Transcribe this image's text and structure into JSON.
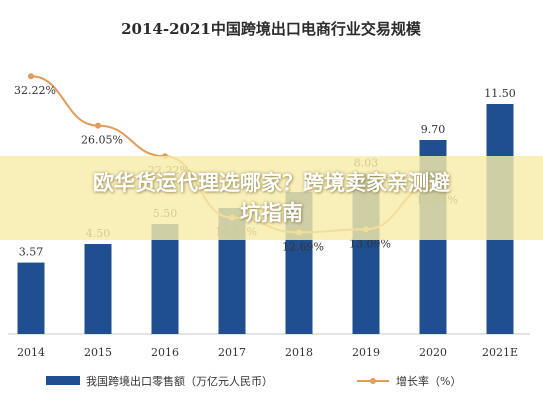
{
  "chart_data": {
    "type": "bar",
    "title": "2014-2021中国跨境出口电商行业交易规模",
    "categories": [
      "2014",
      "2015",
      "2016",
      "2017",
      "2018",
      "2019",
      "2020",
      "2021E"
    ],
    "series": [
      {
        "name": "我国跨境出口零售额（万亿元人民币）",
        "type": "bar",
        "color": "#1f4f8f",
        "values": [
          3.57,
          4.5,
          5.5,
          6.3,
          7.1,
          8.03,
          9.7,
          11.5
        ],
        "labels": [
          "3.57",
          "4.50",
          "5.50",
          "",
          "",
          "8.03",
          "9.70",
          "11.50"
        ]
      },
      {
        "name": "增长率（%）",
        "type": "line",
        "color": "#e39b57",
        "values": [
          32.22,
          26.05,
          22.22,
          14.54,
          12.69,
          13.09,
          18.55,
          null
        ],
        "labels": [
          "32.22%",
          "26.05%",
          "22.22%",
          "14.54%",
          "12.69%",
          "13.09%",
          "18.55%",
          ""
        ]
      }
    ],
    "grid": false,
    "legend_position": "bottom"
  },
  "overlay": {
    "headline": "欧华货运代理选哪家？跨境卖家亲测避坑指南"
  }
}
